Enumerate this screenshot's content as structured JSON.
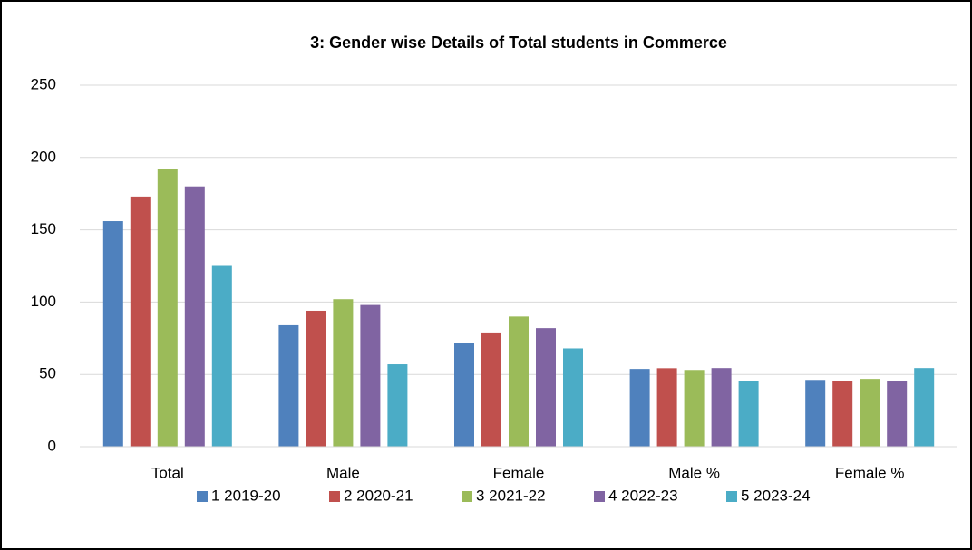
{
  "chart_data": {
    "type": "bar",
    "title": "3: Gender wise Details of Total students in Commerce",
    "categories": [
      "Total",
      "Male",
      "Female",
      "Male %",
      "Female %"
    ],
    "series": [
      {
        "name": "1 2019-20",
        "color": "#4f81bd",
        "values": [
          156,
          84,
          72,
          53.8,
          46.2
        ]
      },
      {
        "name": "2 2020-21",
        "color": "#c0504d",
        "values": [
          173,
          94,
          79,
          54.3,
          45.7
        ]
      },
      {
        "name": "3 2021-22",
        "color": "#9bbb59",
        "values": [
          192,
          102,
          90,
          53.1,
          46.9
        ]
      },
      {
        "name": "4 2022-23",
        "color": "#8064a2",
        "values": [
          180,
          98,
          82,
          54.4,
          45.6
        ]
      },
      {
        "name": "5 2023-24",
        "color": "#4bacc6",
        "values": [
          125,
          57,
          68,
          45.6,
          54.4
        ]
      }
    ],
    "ylim": [
      0,
      250
    ],
    "yticks": [
      0,
      50,
      100,
      150,
      200,
      250
    ],
    "grid": true,
    "legend": "bottom"
  }
}
